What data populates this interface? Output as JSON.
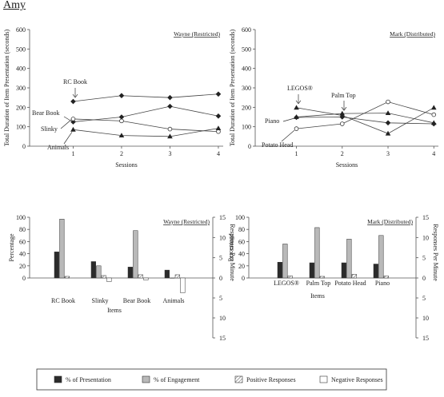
{
  "page_title": "Amy",
  "chart_data": [
    {
      "id": "wayne-line",
      "type": "line",
      "caption": "Wayne (Restricted)",
      "xlabel": "Sessions",
      "ylabel": "Total Duration of Item Presentation (seconds)",
      "x": [
        1,
        2,
        3,
        4
      ],
      "xlim": [
        0.1,
        4.1
      ],
      "ylim": [
        0,
        600
      ],
      "yticks": [
        0,
        100,
        200,
        300,
        400,
        500,
        600
      ],
      "series": [
        {
          "name": "RC Book",
          "marker": "diamond",
          "values": [
            230,
            260,
            250,
            268
          ]
        },
        {
          "name": "Bear Book",
          "marker": "diamond",
          "values": [
            125,
            150,
            205,
            155
          ]
        },
        {
          "name": "Slinky",
          "marker": "circle",
          "values": [
            140,
            130,
            88,
            75
          ]
        },
        {
          "name": "Animals",
          "marker": "triangle",
          "values": [
            85,
            55,
            50,
            92
          ]
        }
      ]
    },
    {
      "id": "mark-line",
      "type": "line",
      "caption": "Mark (Distributed)",
      "xlabel": "Sessions",
      "ylabel": "Total Duration of Item Presentation (seconds)",
      "x": [
        1,
        2,
        3,
        4
      ],
      "xlim": [
        0.1,
        4.1
      ],
      "ylim": [
        0,
        600
      ],
      "yticks": [
        0,
        100,
        200,
        300,
        400,
        500,
        600
      ],
      "series": [
        {
          "name": "LEGOS®",
          "marker": "triangle",
          "values": [
            198,
            158,
            65,
            198
          ]
        },
        {
          "name": "Palm Top",
          "marker": "triangle",
          "values": [
            150,
            168,
            170,
            120
          ]
        },
        {
          "name": "Piano",
          "marker": "diamond",
          "values": [
            148,
            150,
            120,
            115
          ]
        },
        {
          "name": "Potato Head",
          "marker": "circle",
          "values": [
            90,
            115,
            228,
            162
          ]
        }
      ]
    },
    {
      "id": "wayne-bar",
      "type": "bar",
      "caption": "Wayne (Restricted)",
      "xlabel": "Items",
      "ylabel": "Percentage",
      "y2label": "Responses Per Minute",
      "categories": [
        "RC Book",
        "Slinky",
        "Bear Book",
        "Animals"
      ],
      "ylim": [
        0,
        100
      ],
      "yticks": [
        0,
        20,
        40,
        60,
        80,
        100
      ],
      "y2lim": [
        -15,
        15
      ],
      "y2ticks": [
        15,
        10,
        5,
        0,
        5,
        10,
        15
      ],
      "series": [
        {
          "name": "% of Presentation",
          "axis": "left",
          "values": [
            43,
            27,
            18,
            13
          ]
        },
        {
          "name": "% of Engagement",
          "axis": "left",
          "values": [
            97,
            20,
            78,
            0
          ]
        },
        {
          "name": "Positive Responses",
          "axis": "right",
          "values": [
            0.4,
            0.6,
            0.8,
            0.8
          ]
        },
        {
          "name": "Negative Responses",
          "axis": "right",
          "values": [
            0,
            -0.9,
            -0.5,
            -3.7
          ]
        }
      ]
    },
    {
      "id": "mark-bar",
      "type": "bar",
      "caption": "Mark (Distributed)",
      "xlabel": "Items",
      "ylabel": "Percentage",
      "y2label": "Responses Per Minute",
      "categories": [
        "LEGOS®",
        "Palm Top",
        "Potato Head",
        "Piano"
      ],
      "ylim": [
        0,
        100
      ],
      "yticks": [
        0,
        20,
        40,
        60,
        80,
        100
      ],
      "y2lim": [
        -15,
        15
      ],
      "y2ticks": [
        15,
        10,
        5,
        0,
        5,
        10,
        15
      ],
      "series": [
        {
          "name": "% of Presentation",
          "axis": "left",
          "values": [
            26,
            25,
            25,
            23
          ]
        },
        {
          "name": "% of Engagement",
          "axis": "left",
          "values": [
            56,
            83,
            64,
            70
          ]
        },
        {
          "name": "Positive Responses",
          "axis": "right",
          "values": [
            0.5,
            0.4,
            0.9,
            0.5
          ]
        },
        {
          "name": "Negative Responses",
          "axis": "right",
          "values": [
            0,
            0,
            0,
            0
          ]
        }
      ]
    }
  ],
  "legend": [
    {
      "label": "% of Presentation",
      "style": "dark",
      "color": "#2b2b2b"
    },
    {
      "label": "% of Engagement",
      "style": "gray",
      "color": "#b9b9b9"
    },
    {
      "label": "Positive Responses",
      "style": "hatch",
      "color": "#ffffff"
    },
    {
      "label": "Negative Responses",
      "style": "white",
      "color": "#ffffff"
    }
  ]
}
